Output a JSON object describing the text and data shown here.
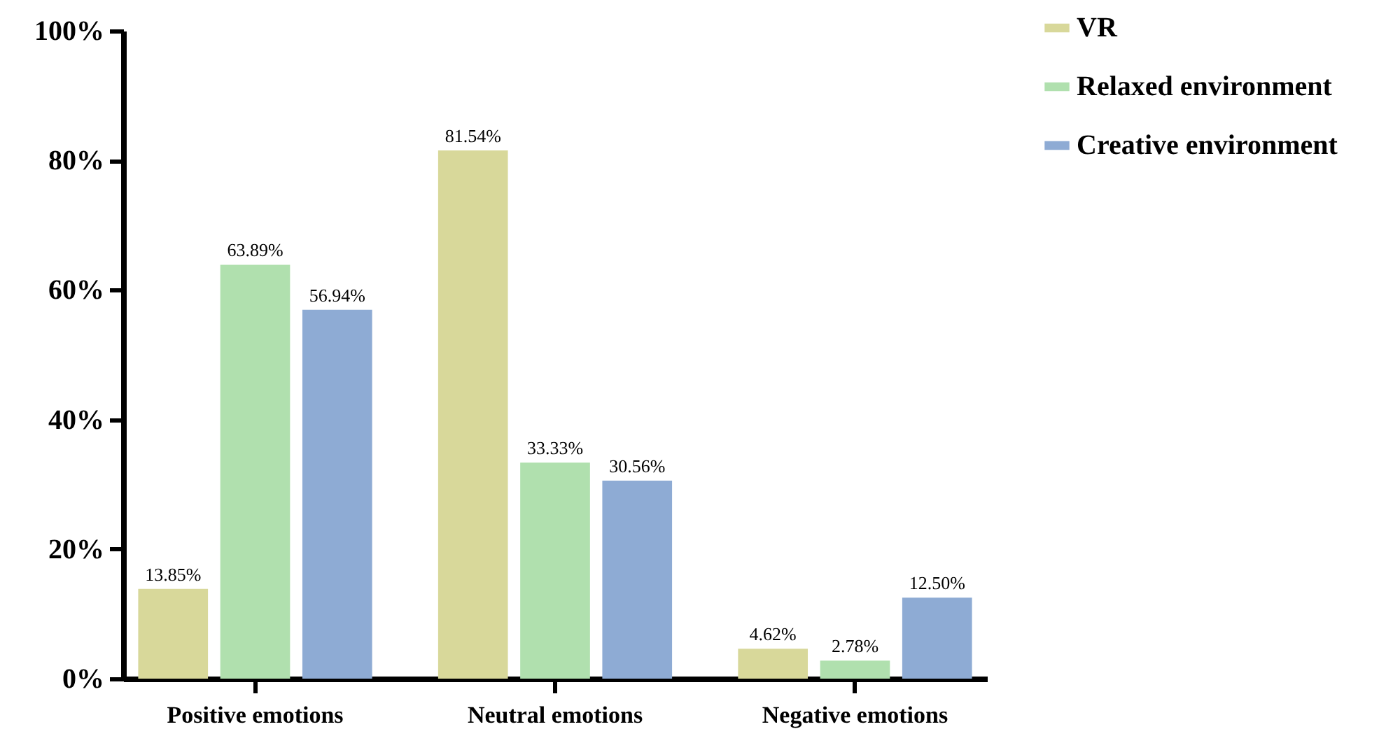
{
  "chart_data": {
    "type": "bar",
    "categories": [
      "Positive emotions",
      "Neutral emotions",
      "Negative emotions"
    ],
    "series": [
      {
        "name": "VR",
        "color": "#d8d89a",
        "values": [
          13.85,
          81.54,
          4.62
        ],
        "value_labels": [
          "13.85%",
          "81.54%",
          "4.62%"
        ]
      },
      {
        "name": "Relaxed environment",
        "color": "#b0e0ae",
        "values": [
          63.89,
          33.33,
          2.78
        ],
        "value_labels": [
          "63.89%",
          "33.33%",
          "2.78%"
        ]
      },
      {
        "name": "Creative environment",
        "color": "#8eabd4",
        "values": [
          56.94,
          30.56,
          12.5
        ],
        "value_labels": [
          "56.94%",
          "30.56%",
          "12.50%"
        ]
      }
    ],
    "ylim": [
      0,
      100
    ],
    "yticks": [
      {
        "value": 0,
        "label": "0%"
      },
      {
        "value": 20,
        "label": "20%"
      },
      {
        "value": 40,
        "label": "40%"
      },
      {
        "value": 60,
        "label": "60%"
      },
      {
        "value": 80,
        "label": "80%"
      },
      {
        "value": 100,
        "label": "100%"
      }
    ],
    "grid": false,
    "legend": "top right"
  }
}
